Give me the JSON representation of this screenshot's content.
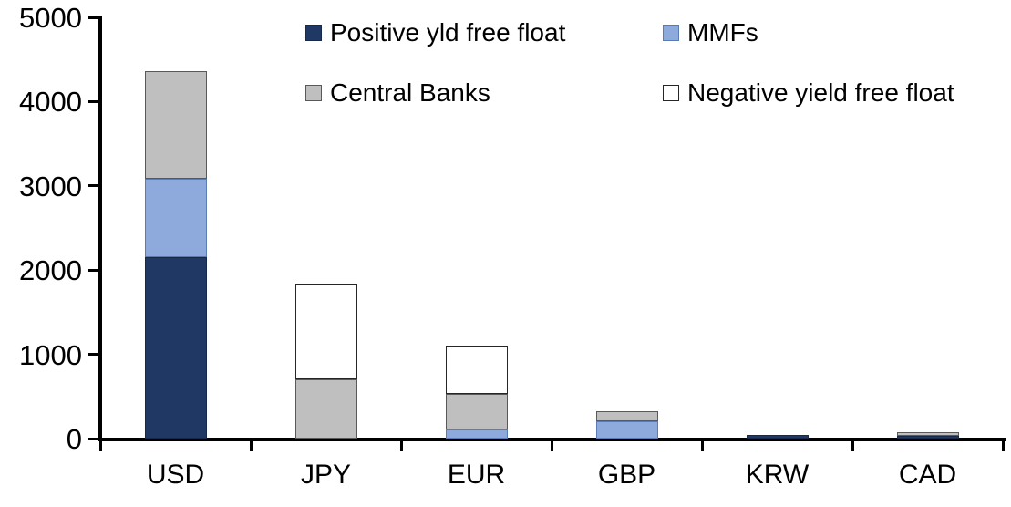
{
  "chart_data": {
    "type": "bar",
    "stacked": true,
    "title": "",
    "xlabel": "",
    "ylabel": "",
    "categories": [
      "USD",
      "JPY",
      "EUR",
      "GBP",
      "KRW",
      "CAD"
    ],
    "series": [
      {
        "name": "Positive yld free float",
        "color": "#1F3864",
        "border": "#16294A",
        "values": [
          2150,
          0,
          0,
          0,
          45,
          35
        ]
      },
      {
        "name": "MMFs",
        "color": "#8EA9DB",
        "border": "#5B7BB4",
        "values": [
          930,
          0,
          110,
          210,
          0,
          0
        ]
      },
      {
        "name": "Central Banks",
        "color": "#BFBFBF",
        "border": "#595959",
        "values": [
          1280,
          700,
          420,
          115,
          0,
          40
        ]
      },
      {
        "name": "Negative yield free float",
        "color": "#FFFFFF",
        "border": "#262626",
        "values": [
          0,
          1140,
          570,
          0,
          0,
          0
        ]
      }
    ],
    "ylim": [
      0,
      5000
    ],
    "yticks": [
      0,
      1000,
      2000,
      3000,
      4000,
      5000
    ],
    "grid": false,
    "legend_position": "top, two columns, two rows"
  }
}
